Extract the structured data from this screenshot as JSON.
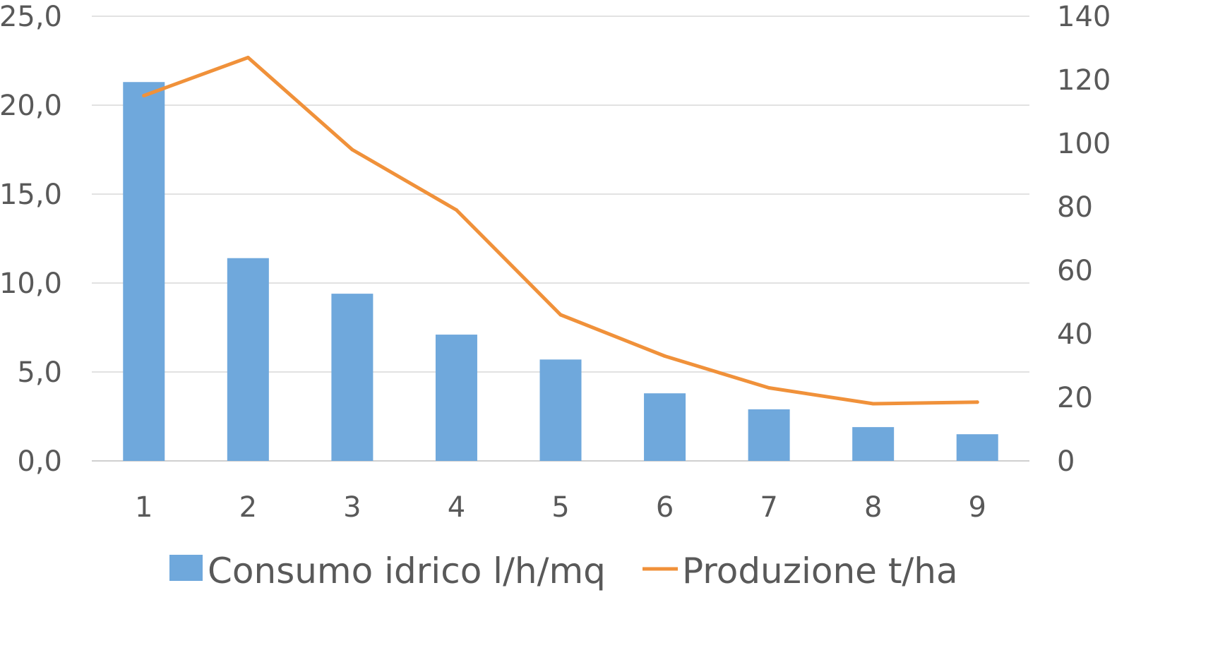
{
  "chart_data": {
    "type": "bar",
    "categories": [
      "1",
      "2",
      "3",
      "4",
      "5",
      "6",
      "7",
      "8",
      "9"
    ],
    "series": [
      {
        "name": "Consumo idrico l/h/mq",
        "type": "bar",
        "axis": "left",
        "color": "#6FA8DC",
        "values": [
          21.3,
          11.4,
          9.4,
          7.1,
          5.7,
          3.8,
          2.9,
          1.9,
          1.5
        ]
      },
      {
        "name": "Produzione t/ha",
        "type": "line",
        "axis": "right",
        "color": "#F0913A",
        "values": [
          115,
          127,
          98,
          79,
          46,
          33,
          23,
          18,
          18.5
        ]
      }
    ],
    "y_left": {
      "range": [
        0,
        25
      ],
      "ticks": [
        0,
        5,
        10,
        15,
        20,
        25
      ],
      "tick_labels": [
        "0,0",
        "5,0",
        "10,0",
        "15,0",
        "20,0",
        "25,0"
      ]
    },
    "y_right": {
      "range": [
        0,
        140
      ],
      "ticks": [
        0,
        20,
        40,
        60,
        80,
        100,
        120,
        140
      ],
      "tick_labels": [
        "0",
        "20",
        "40",
        "60",
        "80",
        "100",
        "120",
        "140"
      ]
    },
    "grid": true,
    "gridline_color": "#D9D9D9",
    "legend_position": "bottom"
  }
}
